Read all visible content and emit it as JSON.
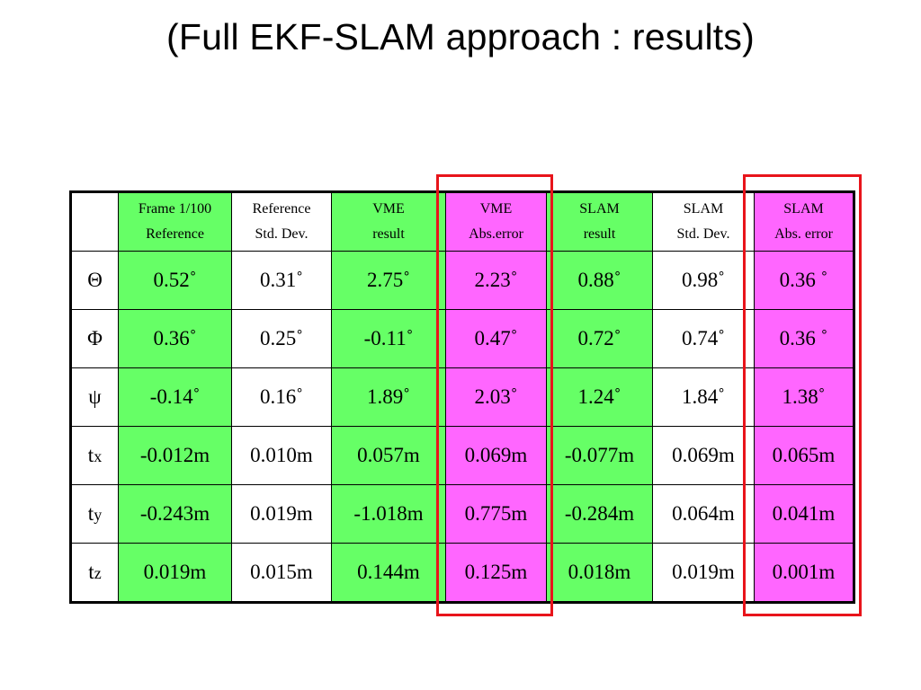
{
  "title": "(Full EKF-SLAM approach : results)",
  "header": {
    "corner": "",
    "columns": [
      {
        "line1": "Frame 1/100",
        "line2": "Reference"
      },
      {
        "line1": "Reference",
        "line2": "Std. Dev."
      },
      {
        "line1": "VME",
        "line2": "result"
      },
      {
        "line1": "VME",
        "line2": "Abs.error"
      },
      {
        "line1": "SLAM",
        "line2": "result"
      },
      {
        "line1": "SLAM",
        "line2": "Std. Dev."
      },
      {
        "line1": "SLAM",
        "line2": "Abs. error"
      }
    ]
  },
  "rows": [
    {
      "label": "Θ",
      "sub": "",
      "cells": [
        "0.52˚",
        "0.31˚",
        "2.75˚",
        "2.23˚",
        "0.88˚",
        "0.98˚",
        "0.36 ˚"
      ]
    },
    {
      "label": "Φ",
      "sub": "",
      "cells": [
        "0.36˚",
        "0.25˚",
        "-0.11˚",
        "0.47˚",
        "0.72˚",
        "0.74˚",
        "0.36 ˚"
      ]
    },
    {
      "label": "ψ",
      "sub": "",
      "cells": [
        "-0.14˚",
        "0.16˚",
        "1.89˚",
        "2.03˚",
        "1.24˚",
        "1.84˚",
        "1.38˚"
      ]
    },
    {
      "label": "t",
      "sub": "x",
      "cells": [
        "-0.012m",
        "0.010m",
        "0.057m",
        "0.069m",
        "-0.077m",
        "0.069m",
        "0.065m"
      ]
    },
    {
      "label": "t",
      "sub": "y",
      "cells": [
        "-0.243m",
        "0.019m",
        "-1.018m",
        "0.775m",
        "-0.284m",
        "0.064m",
        "0.041m"
      ]
    },
    {
      "label": "t",
      "sub": "z",
      "cells": [
        "0.019m",
        "0.015m",
        "0.144m",
        "0.125m",
        "0.018m",
        "0.019m",
        "0.001m"
      ]
    }
  ],
  "colors": {
    "green": "#66ff66",
    "magenta": "#ff66ff",
    "white": "#ffffff",
    "highlight_box": "#e8141b"
  }
}
